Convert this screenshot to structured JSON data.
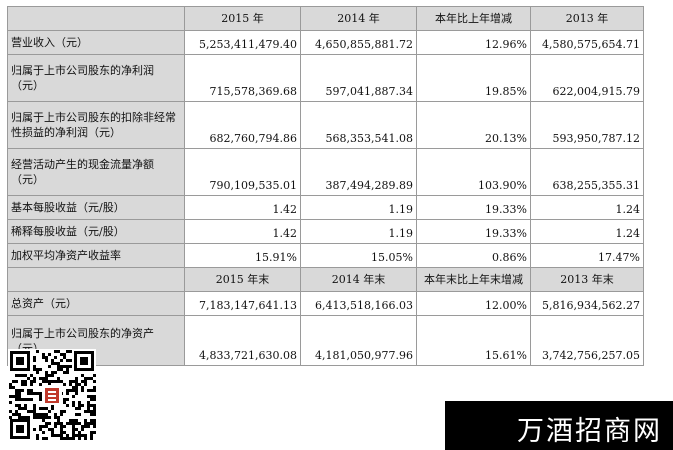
{
  "table": {
    "header1": [
      "",
      "2015 年",
      "2014 年",
      "本年比上年增减",
      "2013 年"
    ],
    "rows1": [
      {
        "label": "营业收入（元）",
        "values": [
          "5,253,411,479.40",
          "4,650,855,881.72",
          "12.96%",
          "4,580,575,654.71"
        ]
      },
      {
        "label": "归属于上市公司股东的净利润（元）",
        "values": [
          "715,578,369.68",
          "597,041,887.34",
          "19.85%",
          "622,004,915.79"
        ]
      },
      {
        "label": "归属于上市公司股东的扣除非经常性损益的净利润（元）",
        "values": [
          "682,760,794.86",
          "568,353,541.08",
          "20.13%",
          "593,950,787.12"
        ]
      },
      {
        "label": "经营活动产生的现金流量净额（元）",
        "values": [
          "790,109,535.01",
          "387,494,289.89",
          "103.90%",
          "638,255,355.31"
        ]
      },
      {
        "label": "基本每股收益（元/股）",
        "values": [
          "1.42",
          "1.19",
          "19.33%",
          "1.24"
        ]
      },
      {
        "label": "稀释每股收益（元/股）",
        "values": [
          "1.42",
          "1.19",
          "19.33%",
          "1.24"
        ]
      },
      {
        "label": "加权平均净资产收益率",
        "values": [
          "15.91%",
          "15.05%",
          "0.86%",
          "17.47%"
        ]
      }
    ],
    "header2": [
      "",
      "2015 年末",
      "2014 年末",
      "本年末比上年末增减",
      "2013 年末"
    ],
    "rows2": [
      {
        "label": "总资产（元）",
        "values": [
          "7,183,147,641.13",
          "6,413,518,166.03",
          "12.00%",
          "5,816,934,562.27"
        ]
      },
      {
        "label": "归属于上市公司股东的净资产（元）",
        "values": [
          "4,833,721,630.08",
          "4,181,050,977.96",
          "15.61%",
          "3,742,756,257.05"
        ]
      }
    ]
  },
  "watermark": {
    "text": "万酒招商网"
  }
}
